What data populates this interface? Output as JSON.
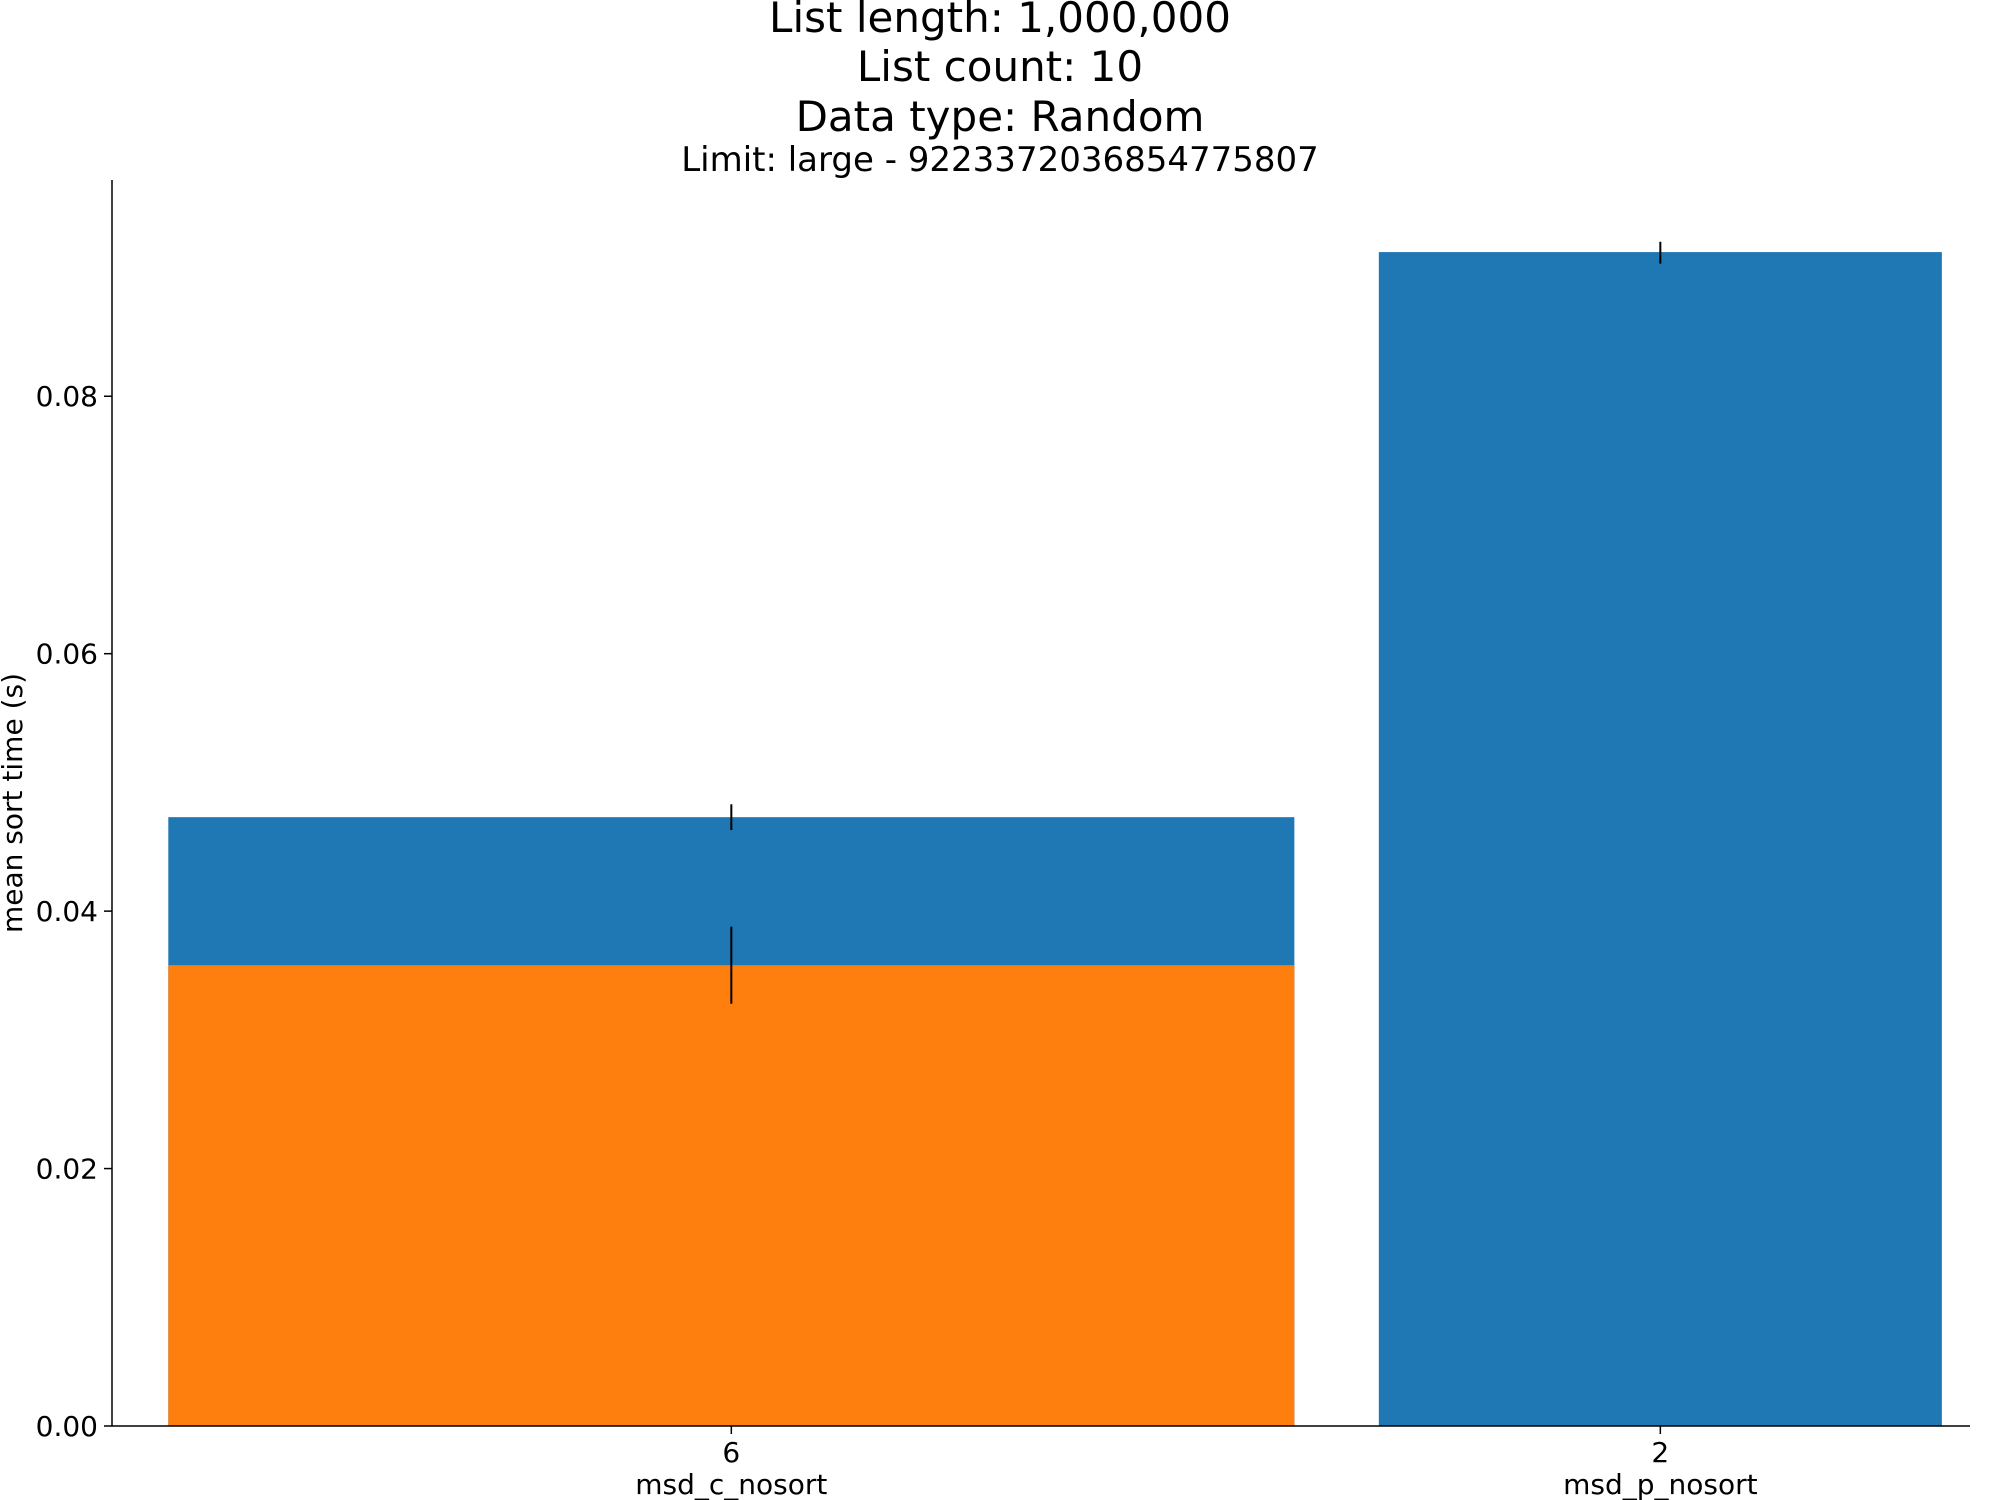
{
  "chart_data": {
    "type": "bar",
    "title_lines": [
      "List length: 1,000,000",
      "List count: 10",
      "Data type: Random"
    ],
    "subtitle": "Limit: large -  9223372036854775807",
    "xlabel": "",
    "ylabel": "mean sort time (s)",
    "ylim": [
      0,
      0.0968
    ],
    "yticks": [
      "0.00",
      "0.02",
      "0.04",
      "0.06",
      "0.08"
    ],
    "ytick_values": [
      0,
      0.02,
      0.04,
      0.06,
      0.08
    ],
    "grid": false,
    "legend": "none",
    "bars": [
      {
        "id": "msd-c-nosort-total",
        "x_start": -0.5,
        "x_end": 0.5,
        "value": 0.0473,
        "err": [
          0.0463,
          0.0483
        ],
        "color": "#1f77b4"
      },
      {
        "id": "msd-c-nosort-part",
        "x_start": -0.5,
        "x_end": 0.5,
        "value": 0.0358,
        "err": [
          0.0328,
          0.0388
        ],
        "color": "#ff7f0e"
      },
      {
        "id": "msd-p-nosort",
        "x_start": 0.575,
        "x_end": 1.075,
        "value": 0.0912,
        "err": [
          0.0903,
          0.092
        ],
        "color": "#1f77b4"
      }
    ],
    "xticks": [
      {
        "pos": 0,
        "number": "6",
        "label": "msd_c_nosort"
      },
      {
        "pos": 0.825,
        "number": "2",
        "label": "msd_p_nosort"
      }
    ]
  }
}
